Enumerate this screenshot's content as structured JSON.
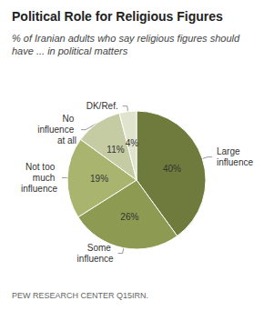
{
  "chart_data": {
    "type": "pie",
    "title": "Political Role for Religious Figures",
    "subtitle": "% of Iranian adults who say religious figures should have ... in political matters",
    "source": "PEW RESEARCH CENTER Q15IRN.",
    "categories": [
      "Large influence",
      "Some influence",
      "Not too much influence",
      "No influence at all",
      "DK/Ref."
    ],
    "values": [
      40,
      26,
      19,
      11,
      4
    ],
    "value_labels": [
      "40%",
      "26%",
      "19%",
      "11%",
      "4%"
    ],
    "colors": [
      "#6e7b3c",
      "#8c9a52",
      "#a9b56f",
      "#c5cca3",
      "#e0e4cc"
    ],
    "data_labels": true
  }
}
